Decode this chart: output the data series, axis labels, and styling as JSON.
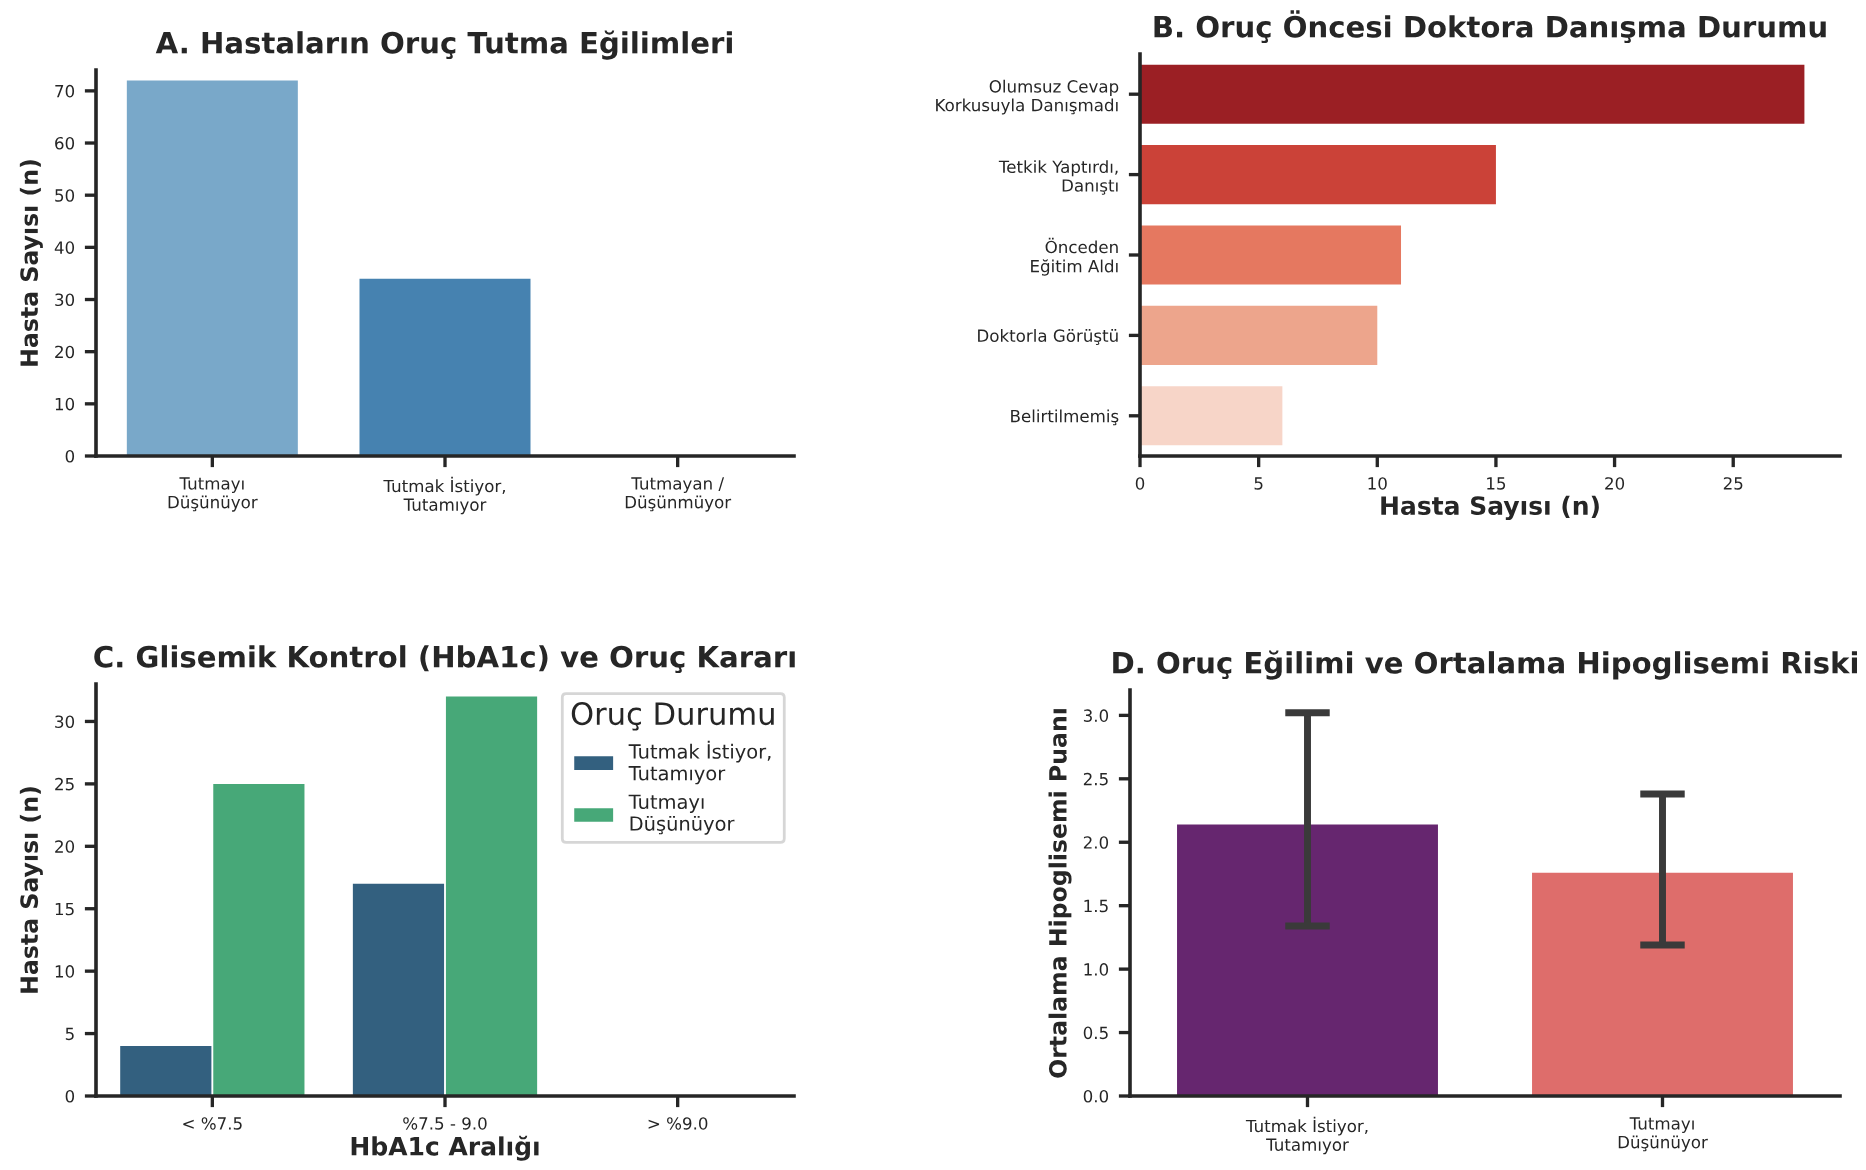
{
  "chart_data": [
    {
      "type": "bar",
      "title": "A. Hastaların Oruç Tutma Eğilimleri",
      "ylabel": "Hasta Sayısı (n)",
      "categories": [
        "Tutmayı\nDüşünüyor",
        "Tutmak İstiyor,\nTutamıyor",
        "Tutmayan /\nDüşünmüyor"
      ],
      "values": [
        72,
        34,
        0
      ],
      "colors": [
        "#79a8c9",
        "#4682b0",
        "#1f5f95"
      ],
      "ylim": [
        0,
        74
      ],
      "yticks": [
        0,
        10,
        20,
        30,
        40,
        50,
        60,
        70
      ],
      "grid": false,
      "legend": false
    },
    {
      "type": "bar",
      "orientation": "horizontal",
      "title": "B. Oruç Öncesi Doktora Danışma Durumu",
      "xlabel": "Hasta Sayısı (n)",
      "categories": [
        "Olumsuz Cevap\nKorkusuyla Danışmadı",
        "Tetkik Yaptırdı,\nDanıştı",
        "Önceden\nEğitim Aldı",
        "Doktorla Görüştü",
        "Belirtilmemiş"
      ],
      "values": [
        28,
        15,
        11,
        10,
        6
      ],
      "colors": [
        "#9b1f24",
        "#cb4238",
        "#e57860",
        "#eda58c",
        "#f7d5c8"
      ],
      "xlim": [
        0,
        29.5
      ],
      "xticks": [
        0,
        5,
        10,
        15,
        20,
        25
      ],
      "grid": false,
      "legend": false
    },
    {
      "type": "bar",
      "title": "C. Glisemik Kontrol (HbA1c) ve Oruç Kararı",
      "xlabel": "HbA1c Aralığı",
      "ylabel": "Hasta Sayısı (n)",
      "legend_title": "Oruç Durumu",
      "categories": [
        "< %7.5",
        "%7.5 - 9.0",
        "> %9.0"
      ],
      "series": [
        {
          "name": "Tutmak İstiyor,\nTutamıyor",
          "color": "#33607f",
          "values": [
            4,
            17,
            0
          ]
        },
        {
          "name": "Tutmayı\nDüşünüyor",
          "color": "#47a878",
          "values": [
            25,
            32,
            0
          ]
        }
      ],
      "ylim": [
        0,
        33
      ],
      "yticks": [
        0,
        5,
        10,
        15,
        20,
        25,
        30
      ],
      "grid": false,
      "legend": "top right"
    },
    {
      "type": "bar",
      "title": "D. Oruç Eğilimi ve Ortalama Hipoglisemi Riski",
      "ylabel": "Ortalama Hipoglisemi Puanı",
      "categories": [
        "Tutmak İstiyor,\nTutamıyor",
        "Tutmayı\nDüşünüyor"
      ],
      "values": [
        2.14,
        1.76
      ],
      "errors": [
        [
          1.34,
          3.02
        ],
        [
          1.19,
          2.38
        ]
      ],
      "colors": [
        "#66266f",
        "#de6d6b"
      ],
      "ylim": [
        0,
        3.2
      ],
      "yticks": [
        {
          "value": 0,
          "label": "0.0"
        },
        {
          "value": 0.5,
          "label": "0.5"
        },
        {
          "value": 1,
          "label": "1.0"
        },
        {
          "value": 1.5,
          "label": "1.5"
        },
        {
          "value": 2,
          "label": "2.0"
        },
        {
          "value": 2.5,
          "label": "2.5"
        },
        {
          "value": 3,
          "label": "3.0"
        }
      ],
      "grid": false,
      "legend": false
    }
  ]
}
